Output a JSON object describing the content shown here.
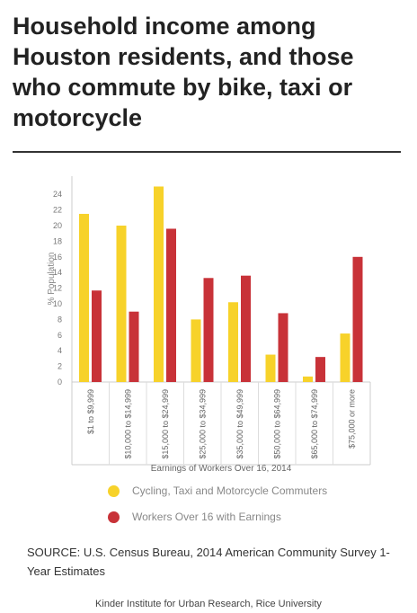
{
  "title": "Household income among Houston residents, and those who commute by bike, taxi or motorcycle",
  "source": "SOURCE: U.S. Census Bureau, 2014 American Community Survey 1-Year Estimates",
  "credit": "Kinder Institute for Urban Research, Rice University",
  "chart_data": {
    "type": "bar",
    "categories": [
      "$1 to $9,999",
      "$10,000 to $14,999",
      "$15,000 to $24,999",
      "$25,000 to $34,999",
      "$35,000 to $49,999",
      "$50,000 to $64,999",
      "$65,000 to $74,999",
      "$75,000 or more"
    ],
    "series": [
      {
        "name": "Cycling, Taxi and Motorcycle Commuters",
        "color": "#f7d22a",
        "values": [
          21.5,
          20.0,
          25.0,
          8.0,
          10.2,
          3.5,
          0.7,
          6.2
        ]
      },
      {
        "name": "Workers Over 16 with Earnings",
        "color": "#c83238",
        "values": [
          11.7,
          9.0,
          19.6,
          13.3,
          13.6,
          8.8,
          3.2,
          16.0
        ]
      }
    ],
    "xlabel": "Earnings of Workers Over 16, 2014",
    "ylabel": "% Population",
    "ylim": [
      0,
      25
    ],
    "yticks": [
      0,
      2,
      4,
      6,
      8,
      10,
      12,
      14,
      16,
      18,
      20,
      22,
      24
    ],
    "grid": false,
    "legend_position": "bottom"
  }
}
